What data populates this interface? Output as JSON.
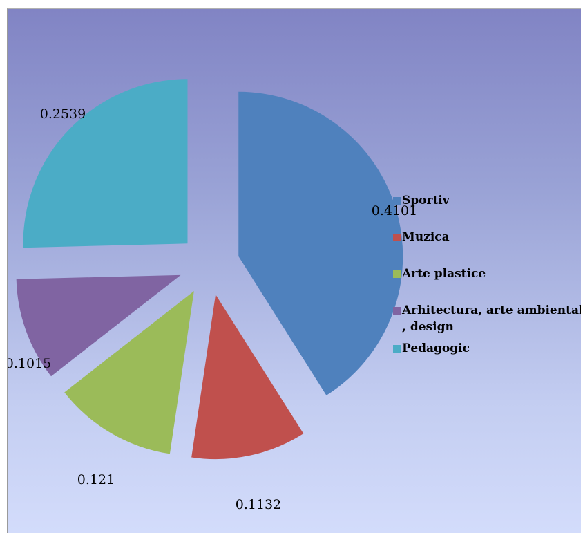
{
  "chart_data": {
    "type": "pie",
    "exploded": true,
    "categories": [
      "Sportiv",
      "Muzica",
      "Arte plastice",
      "Arhitectura, arte ambientale , design",
      "Pedagogic"
    ],
    "values": [
      0.4101,
      0.1132,
      0.121,
      0.1015,
      0.2539
    ],
    "data_labels": [
      "0.4101",
      "0.1132",
      "0.121",
      "0.1015",
      "0.2539"
    ],
    "colors": [
      "#4f81bd",
      "#c0504d",
      "#9bbb59",
      "#8064a2",
      "#4bacc6"
    ],
    "legend": {
      "position": "right",
      "entries": [
        {
          "lines": [
            "Sportiv"
          ]
        },
        {
          "lines": [
            "Muzica"
          ]
        },
        {
          "lines": [
            "Arte plastice"
          ]
        },
        {
          "lines": [
            "Arhitectura, arte ambientale",
            ", design"
          ]
        },
        {
          "lines": [
            "Pedagogic"
          ]
        }
      ]
    },
    "title": "",
    "background": "gradient"
  }
}
